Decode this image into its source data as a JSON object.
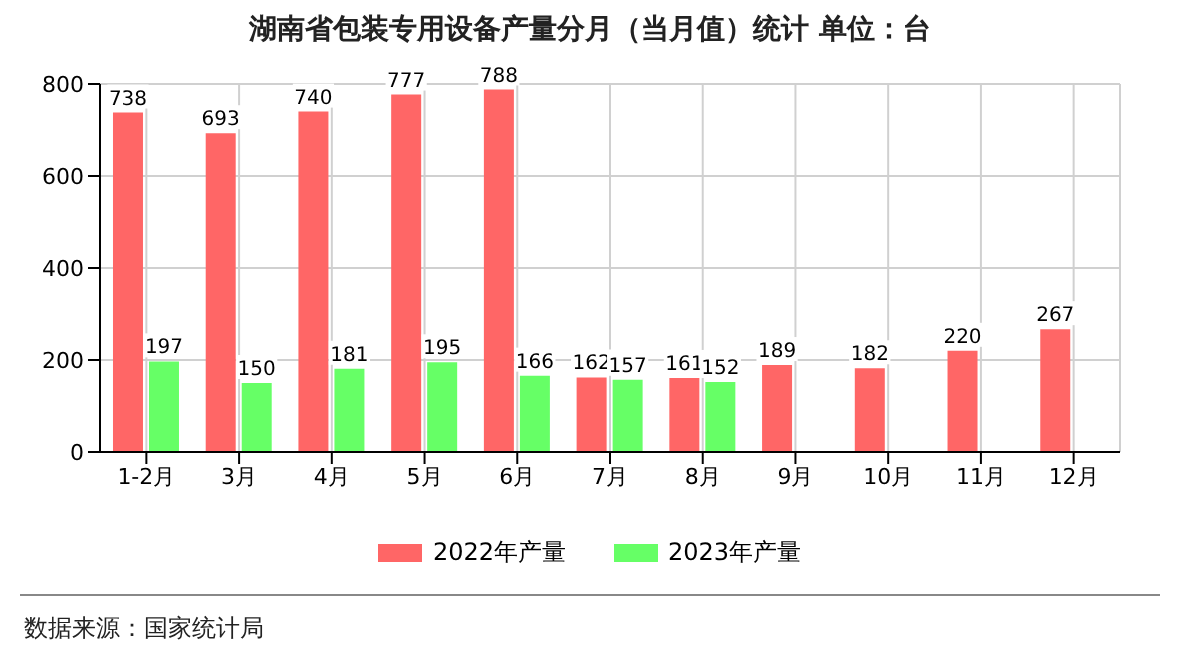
{
  "chart_data": {
    "type": "bar",
    "title": "湖南省包装专用设备产量分月（当月值）统计 单位：台",
    "categories": [
      "1-2月",
      "3月",
      "4月",
      "5月",
      "6月",
      "7月",
      "8月",
      "9月",
      "10月",
      "11月",
      "12月"
    ],
    "series": [
      {
        "name": "2022年产量",
        "color": "#ff6666",
        "values": [
          738,
          693,
          740,
          777,
          788,
          162,
          161,
          189,
          182,
          220,
          267
        ]
      },
      {
        "name": "2023年产量",
        "color": "#66ff66",
        "values": [
          197,
          150,
          181,
          195,
          166,
          157,
          152,
          null,
          null,
          null,
          null
        ]
      }
    ],
    "ylim": [
      0,
      800
    ],
    "yticks": [
      0,
      200,
      400,
      600,
      800
    ],
    "grid": true,
    "legend": "bottom",
    "data_labels": true,
    "annotations": [
      "数据来源：国家统计局"
    ]
  }
}
